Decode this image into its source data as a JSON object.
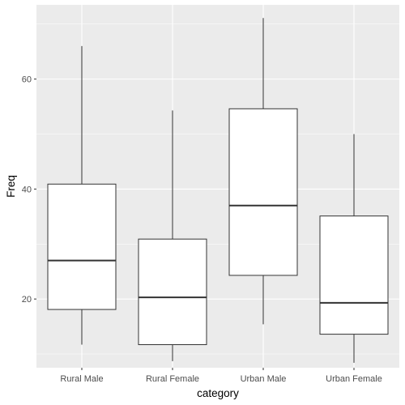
{
  "chart_data": {
    "type": "boxplot",
    "title": "",
    "xlabel": "category",
    "ylabel": "Freq",
    "ylim": [
      7.5,
      73.5
    ],
    "y_ticks": [
      20,
      40,
      60
    ],
    "categories": [
      "Rural Male",
      "Rural Female",
      "Urban Male",
      "Urban Female"
    ],
    "boxes": [
      {
        "category": "Rural Male",
        "min": 11.7,
        "q1": 18.1,
        "median": 27.0,
        "q3": 40.9,
        "max": 66.0
      },
      {
        "category": "Rural Female",
        "min": 8.7,
        "q1": 11.7,
        "median": 20.3,
        "q3": 30.9,
        "max": 54.3
      },
      {
        "category": "Urban Male",
        "min": 15.4,
        "q1": 24.3,
        "median": 37.0,
        "q3": 54.6,
        "max": 71.1
      },
      {
        "category": "Urban Female",
        "min": 8.4,
        "q1": 13.6,
        "median": 19.3,
        "q3": 35.1,
        "max": 50.0
      }
    ],
    "grid": true,
    "colors": {
      "panel": "#EBEBEB",
      "grid": "#FFFFFF",
      "box_fill": "#FFFFFF",
      "box_stroke": "#333333"
    }
  }
}
